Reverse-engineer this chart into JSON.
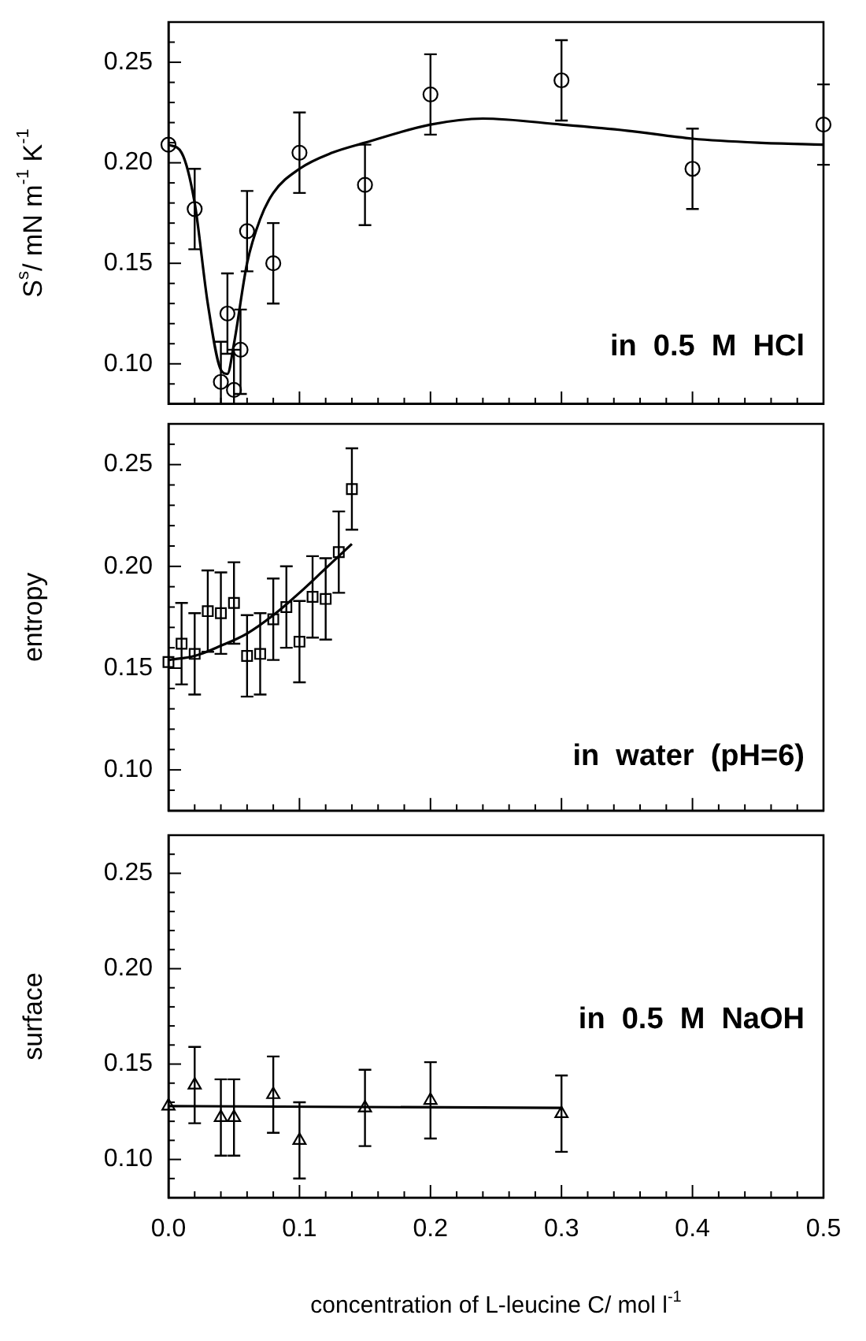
{
  "chart_data": [
    {
      "type": "scatter",
      "ylabel": "S$^{s}$/ mN m$^{-1}$ K$^{-1}$",
      "annotations": [
        "in  0.5  M  HCl"
      ],
      "xlim": [
        0,
        0.5
      ],
      "ylim": [
        0.08,
        0.27
      ],
      "xticks": [
        0,
        {
          "value": 0.02,
          "label": null
        },
        {
          "value": 0.04,
          "label": null
        },
        {
          "value": 0.06,
          "label": null
        },
        {
          "value": 0.08,
          "label": null
        },
        0.1,
        {
          "value": 0.12,
          "label": null
        },
        {
          "value": 0.14,
          "label": null
        },
        {
          "value": 0.16,
          "label": null
        },
        {
          "value": 0.18,
          "label": null
        },
        0.2,
        {
          "value": 0.22,
          "label": null
        },
        {
          "value": 0.24,
          "label": null
        },
        {
          "value": 0.26,
          "label": null
        },
        {
          "value": 0.28,
          "label": null
        },
        0.3,
        {
          "value": 0.32,
          "label": null
        },
        {
          "value": 0.34,
          "label": null
        },
        {
          "value": 0.36,
          "label": null
        },
        {
          "value": 0.38,
          "label": null
        },
        0.4,
        {
          "value": 0.42,
          "label": null
        },
        {
          "value": 0.44,
          "label": null
        },
        {
          "value": 0.46,
          "label": null
        },
        {
          "value": 0.48,
          "label": null
        },
        0.5
      ],
      "yticks": [
        {
          "value": 0.09,
          "label": null
        },
        {
          "value": 0.1,
          "label": "0.10"
        },
        {
          "value": 0.11,
          "label": null
        },
        {
          "value": 0.12,
          "label": null
        },
        {
          "value": 0.13,
          "label": null
        },
        {
          "value": 0.14,
          "label": null
        },
        {
          "value": 0.15,
          "label": "0.15"
        },
        {
          "value": 0.16,
          "label": null
        },
        {
          "value": 0.17,
          "label": null
        },
        {
          "value": 0.18,
          "label": null
        },
        {
          "value": 0.19,
          "label": null
        },
        {
          "value": 0.2,
          "label": "0.20"
        },
        {
          "value": 0.21,
          "label": null
        },
        {
          "value": 0.22,
          "label": null
        },
        {
          "value": 0.23,
          "label": null
        },
        {
          "value": 0.24,
          "label": null
        },
        {
          "value": 0.25,
          "label": "0.25"
        },
        {
          "value": 0.26,
          "label": null
        }
      ],
      "tick_labels": "y",
      "grid": false,
      "legend": false,
      "series": [
        {
          "marker": "circle",
          "color": "#000000",
          "x": [
            0,
            0.02,
            0.04,
            0.045,
            0.05,
            0.055,
            0.06,
            0.08,
            0.1,
            0.15,
            0.2,
            0.3,
            0.4,
            0.5
          ],
          "values": [
            0.209,
            0.177,
            0.091,
            0.125,
            0.087,
            0.107,
            0.166,
            0.15,
            0.205,
            0.189,
            0.234,
            0.241,
            0.197,
            0.219
          ],
          "errors": [
            null,
            0.02,
            [
              0.08,
              0.111
            ],
            0.02,
            [
              0.08,
              0.107
            ],
            [
              0.085,
              0.127
            ],
            0.02,
            0.02,
            0.02,
            0.02,
            0.02,
            0.02,
            0.02,
            0.02
          ]
        },
        {
          "type": "line",
          "marker": "none",
          "color": "#000000",
          "x": [
            0,
            0.01,
            0.02,
            0.03,
            0.04,
            0.045,
            0.05,
            0.06,
            0.07,
            0.08,
            0.1,
            0.125,
            0.15,
            0.2,
            0.24,
            0.3,
            0.35,
            0.4,
            0.45,
            0.5
          ],
          "values": [
            0.209,
            0.205,
            0.18,
            0.13,
            0.097,
            0.095,
            0.11,
            0.15,
            0.172,
            0.185,
            0.197,
            0.205,
            0.21,
            0.219,
            0.222,
            0.219,
            0.216,
            0.212,
            0.21,
            0.209
          ]
        }
      ]
    },
    {
      "type": "scatter",
      "ylabel": "entropy",
      "annotations": [
        "in  water  (pH=6)"
      ],
      "xlim": [
        0,
        0.5
      ],
      "ylim": [
        0.08,
        0.27
      ],
      "xticks": [
        0,
        {
          "value": 0.02,
          "label": null
        },
        {
          "value": 0.04,
          "label": null
        },
        {
          "value": 0.06,
          "label": null
        },
        {
          "value": 0.08,
          "label": null
        },
        0.1,
        {
          "value": 0.12,
          "label": null
        },
        {
          "value": 0.14,
          "label": null
        },
        {
          "value": 0.16,
          "label": null
        },
        {
          "value": 0.18,
          "label": null
        },
        0.2,
        {
          "value": 0.22,
          "label": null
        },
        {
          "value": 0.24,
          "label": null
        },
        {
          "value": 0.26,
          "label": null
        },
        {
          "value": 0.28,
          "label": null
        },
        0.3,
        {
          "value": 0.32,
          "label": null
        },
        {
          "value": 0.34,
          "label": null
        },
        {
          "value": 0.36,
          "label": null
        },
        {
          "value": 0.38,
          "label": null
        },
        0.4,
        {
          "value": 0.42,
          "label": null
        },
        {
          "value": 0.44,
          "label": null
        },
        {
          "value": 0.46,
          "label": null
        },
        {
          "value": 0.48,
          "label": null
        },
        0.5
      ],
      "yticks": [
        {
          "value": 0.09,
          "label": null
        },
        {
          "value": 0.1,
          "label": "0.10"
        },
        {
          "value": 0.11,
          "label": null
        },
        {
          "value": 0.12,
          "label": null
        },
        {
          "value": 0.13,
          "label": null
        },
        {
          "value": 0.14,
          "label": null
        },
        {
          "value": 0.15,
          "label": "0.15"
        },
        {
          "value": 0.16,
          "label": null
        },
        {
          "value": 0.17,
          "label": null
        },
        {
          "value": 0.18,
          "label": null
        },
        {
          "value": 0.19,
          "label": null
        },
        {
          "value": 0.2,
          "label": "0.20"
        },
        {
          "value": 0.21,
          "label": null
        },
        {
          "value": 0.22,
          "label": null
        },
        {
          "value": 0.23,
          "label": null
        },
        {
          "value": 0.24,
          "label": null
        },
        {
          "value": 0.25,
          "label": "0.25"
        },
        {
          "value": 0.26,
          "label": null
        }
      ],
      "tick_labels": "y",
      "grid": false,
      "legend": false,
      "series": [
        {
          "marker": "square",
          "color": "#000000",
          "x": [
            0,
            0.01,
            0.02,
            0.03,
            0.04,
            0.05,
            0.06,
            0.07,
            0.08,
            0.09,
            0.1,
            0.11,
            0.12,
            0.13,
            0.14
          ],
          "values": [
            0.153,
            0.162,
            0.157,
            0.178,
            0.177,
            0.182,
            0.156,
            0.157,
            0.174,
            0.18,
            0.163,
            0.185,
            0.184,
            0.207,
            0.238
          ],
          "errors": [
            null,
            0.02,
            0.02,
            0.02,
            0.02,
            0.02,
            0.02,
            0.02,
            0.02,
            0.02,
            0.02,
            0.02,
            0.02,
            0.02,
            0.02
          ]
        },
        {
          "type": "line",
          "marker": "none",
          "color": "#000000",
          "x": [
            0,
            0.02,
            0.04,
            0.06,
            0.08,
            0.1,
            0.12,
            0.14
          ],
          "values": [
            0.154,
            0.156,
            0.161,
            0.167,
            0.176,
            0.187,
            0.199,
            0.211
          ]
        }
      ]
    },
    {
      "type": "scatter",
      "ylabel": "surface",
      "xlabel": "concentration of L-leucine C/ mol l$^{-1}$",
      "annotations": [
        "in  0.5  M  NaOH"
      ],
      "xlim": [
        0,
        0.5
      ],
      "ylim": [
        0.08,
        0.27
      ],
      "xticks": [
        {
          "value": 0,
          "label": "0.0"
        },
        {
          "value": 0.02,
          "label": null
        },
        {
          "value": 0.04,
          "label": null
        },
        {
          "value": 0.06,
          "label": null
        },
        {
          "value": 0.08,
          "label": null
        },
        0.1,
        {
          "value": 0.12,
          "label": null
        },
        {
          "value": 0.14,
          "label": null
        },
        {
          "value": 0.16,
          "label": null
        },
        {
          "value": 0.18,
          "label": null
        },
        0.2,
        {
          "value": 0.22,
          "label": null
        },
        {
          "value": 0.24,
          "label": null
        },
        {
          "value": 0.26,
          "label": null
        },
        {
          "value": 0.28,
          "label": null
        },
        0.3,
        {
          "value": 0.32,
          "label": null
        },
        {
          "value": 0.34,
          "label": null
        },
        {
          "value": 0.36,
          "label": null
        },
        {
          "value": 0.38,
          "label": null
        },
        0.4,
        {
          "value": 0.42,
          "label": null
        },
        {
          "value": 0.44,
          "label": null
        },
        {
          "value": 0.46,
          "label": null
        },
        {
          "value": 0.48,
          "label": null
        },
        0.5
      ],
      "yticks": [
        {
          "value": 0.09,
          "label": null
        },
        {
          "value": 0.1,
          "label": "0.10"
        },
        {
          "value": 0.11,
          "label": null
        },
        {
          "value": 0.12,
          "label": null
        },
        {
          "value": 0.13,
          "label": null
        },
        {
          "value": 0.14,
          "label": null
        },
        {
          "value": 0.15,
          "label": "0.15"
        },
        {
          "value": 0.16,
          "label": null
        },
        {
          "value": 0.17,
          "label": null
        },
        {
          "value": 0.18,
          "label": null
        },
        {
          "value": 0.19,
          "label": null
        },
        {
          "value": 0.2,
          "label": "0.20"
        },
        {
          "value": 0.21,
          "label": null
        },
        {
          "value": 0.22,
          "label": null
        },
        {
          "value": 0.23,
          "label": null
        },
        {
          "value": 0.24,
          "label": null
        },
        {
          "value": 0.25,
          "label": "0.25"
        },
        {
          "value": 0.26,
          "label": null
        }
      ],
      "grid": false,
      "legend": false,
      "series": [
        {
          "marker": "triangle",
          "color": "#000000",
          "x": [
            0,
            0.02,
            0.04,
            0.05,
            0.08,
            0.1,
            0.15,
            0.2,
            0.3
          ],
          "values": [
            0.128,
            0.139,
            0.122,
            0.122,
            0.134,
            0.11,
            0.127,
            0.131,
            0.124
          ],
          "errors": [
            null,
            0.02,
            0.02,
            0.02,
            0.02,
            0.02,
            0.02,
            0.02,
            0.02
          ]
        },
        {
          "type": "line",
          "marker": "none",
          "color": "#000000",
          "x": [
            0,
            0.3
          ],
          "values": [
            0.128,
            0.127
          ]
        }
      ]
    }
  ]
}
